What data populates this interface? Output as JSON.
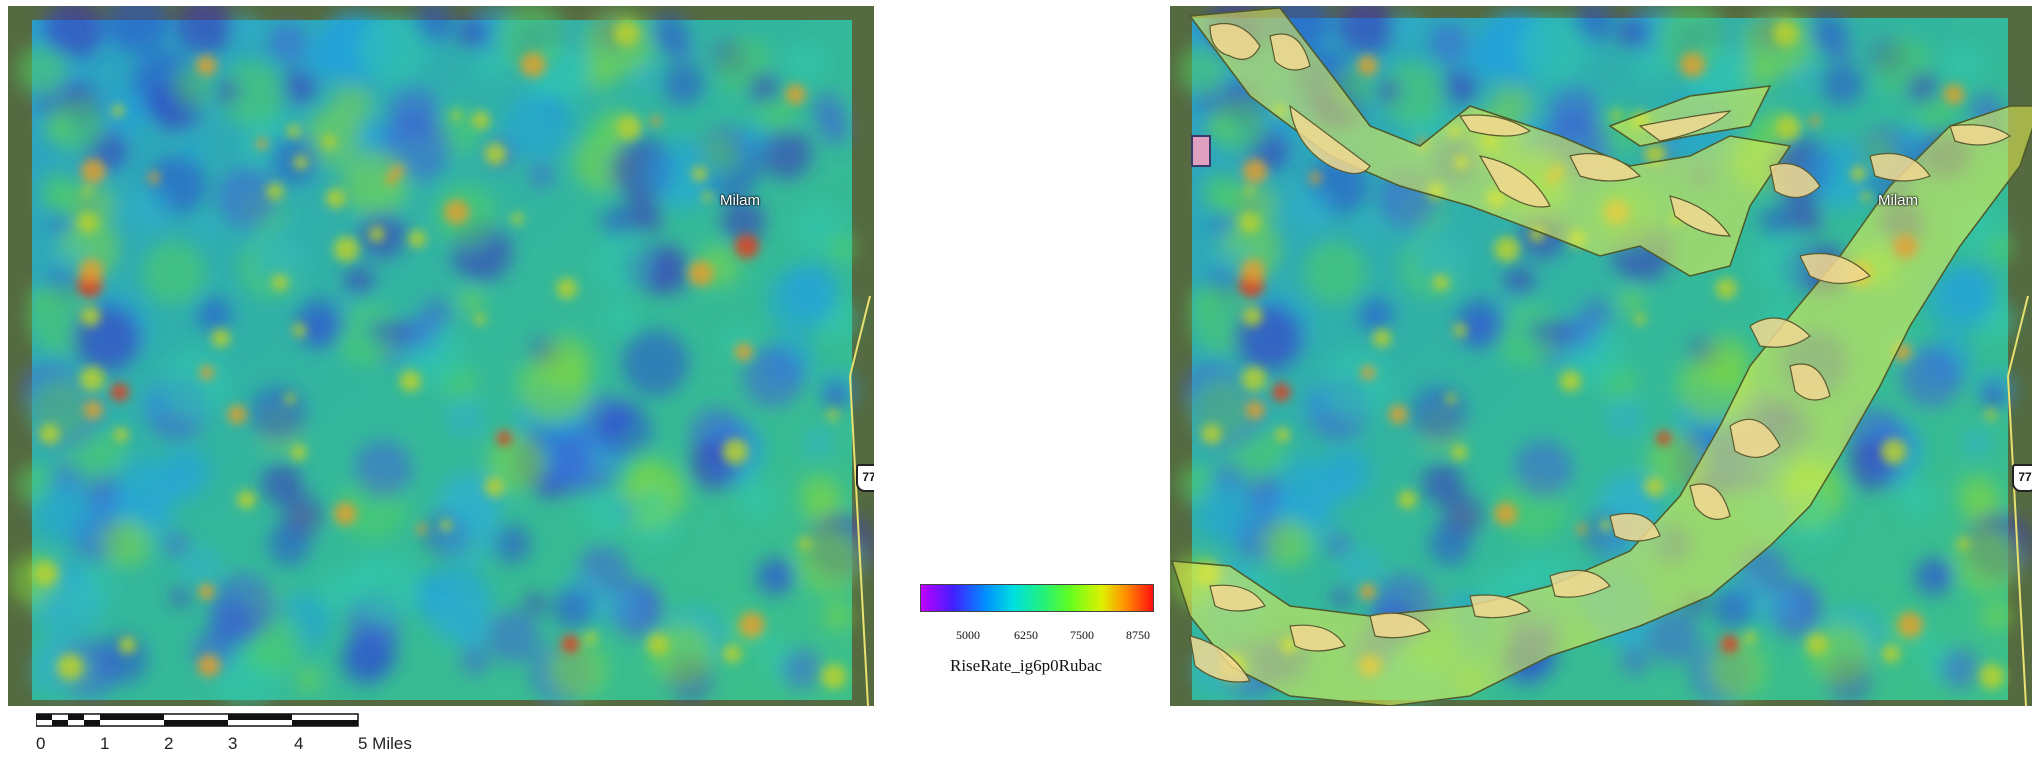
{
  "maps": {
    "left": {
      "town_label": "Milam",
      "highway_shield": "77"
    },
    "right": {
      "town_label": "Milam",
      "highway_shield": "77"
    }
  },
  "legend": {
    "title": "RiseRate_ig6p0Rubac",
    "ticks": [
      "5000",
      "6250",
      "7500",
      "8750"
    ],
    "color_ramp": [
      "#c000ff",
      "#4020ff",
      "#0090ff",
      "#00e0e0",
      "#20f080",
      "#60ff20",
      "#e0f000",
      "#ff9000",
      "#ff1010"
    ]
  },
  "scale_bar": {
    "labels": [
      "0",
      "1",
      "2",
      "3",
      "4",
      "5 Miles"
    ]
  },
  "overlay_colors": {
    "corridor_fill": "#e8f050",
    "patch_fill": "#f0d890",
    "outline": "#5a5a30"
  }
}
